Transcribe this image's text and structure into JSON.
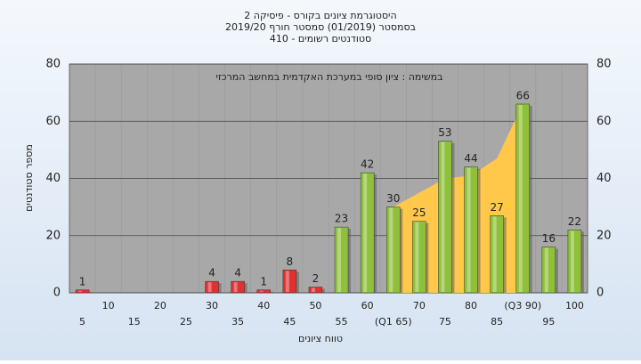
{
  "chart_data": {
    "type": "bar",
    "title": "היסטוגרמת ציונים בקורס - פיסיקה 2",
    "subtitle": "בסמסטר (01/2019) סמסטר חורף 2019/20",
    "subtitle2": "סטודנטים רשומים - 410",
    "annotation": "במשימה : ציון סופי במערכת האקדמית במחשב המרכזי",
    "x_label": "טווח ציונים",
    "y_label": "מספר סטודנטים",
    "categories": [
      "5",
      "10",
      "15",
      "20",
      "25",
      "30",
      "35",
      "40",
      "45",
      "50",
      "55",
      "60",
      "(Q1 65)",
      "70",
      "75",
      "80",
      "85",
      "(Q3 90)",
      "95",
      "100"
    ],
    "values": [
      1,
      0,
      0,
      0,
      0,
      4,
      4,
      1,
      8,
      2,
      23,
      42,
      30,
      25,
      53,
      44,
      27,
      66,
      16,
      22
    ],
    "value_labels": [
      "1",
      null,
      null,
      null,
      null,
      "4",
      "4",
      "1",
      "8",
      "2",
      "23",
      "42",
      "30",
      "25",
      "53",
      "44",
      "27",
      "66",
      "16",
      "22"
    ],
    "colors": [
      "#e03030",
      "#e03030",
      "#e03030",
      "#e03030",
      "#e03030",
      "#e03030",
      "#e03030",
      "#e03030",
      "#e03030",
      "#e03030",
      "#8fc03a",
      "#8fc03a",
      "#8fc03a",
      "#8fc03a",
      "#8fc03a",
      "#8fc03a",
      "#8fc03a",
      "#8fc03a",
      "#8fc03a",
      "#8fc03a"
    ],
    "area": {
      "color": "#ffc84a",
      "values": [
        null,
        null,
        null,
        null,
        null,
        null,
        null,
        null,
        null,
        null,
        null,
        null,
        30,
        35,
        40,
        41,
        47,
        66,
        null,
        null
      ]
    },
    "ylim": [
      0,
      80
    ],
    "yticks": [
      0,
      20,
      40,
      60,
      80
    ],
    "grid": true
  }
}
